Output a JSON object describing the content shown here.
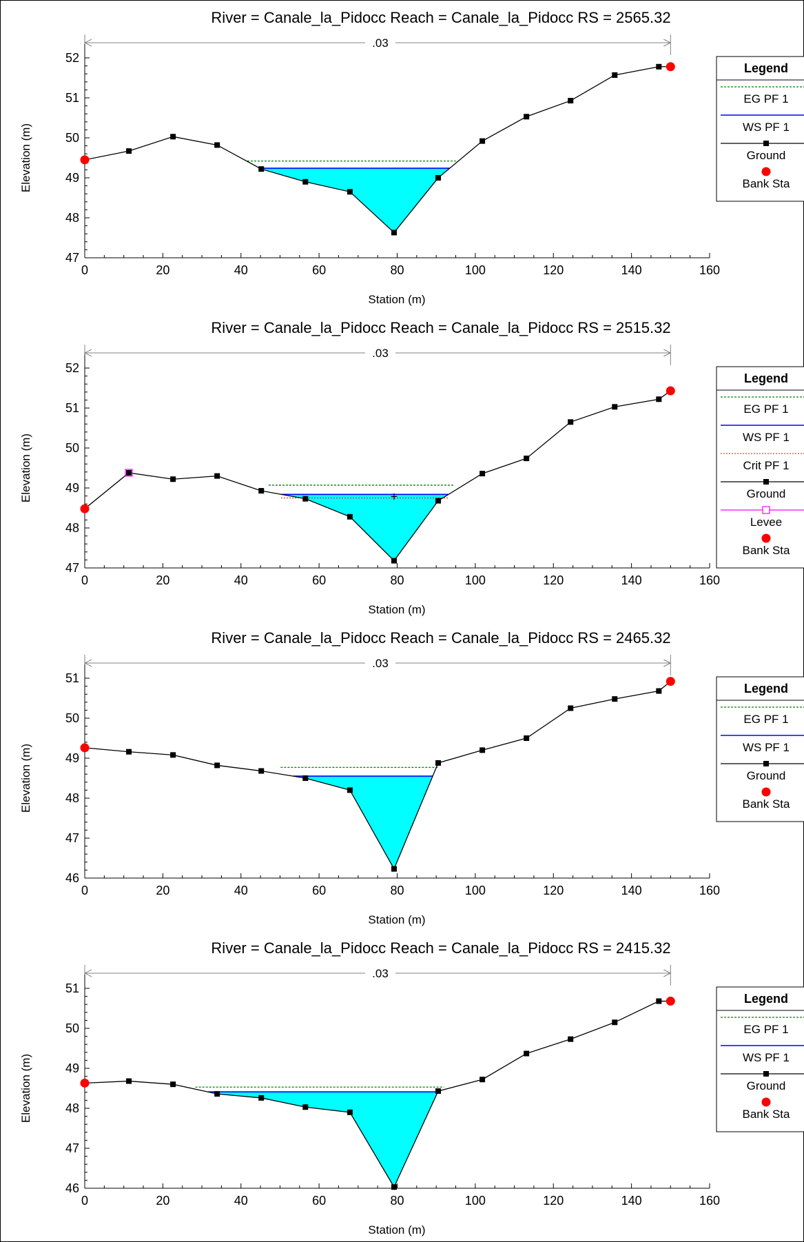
{
  "colors": {
    "water": "#00ffff",
    "ws": "#0000ff",
    "eg": "#008000",
    "crit": "#ff0000",
    "levee": "#ff00ff",
    "bank": "#ff0000",
    "ground": "#000000",
    "nbar": "#808080"
  },
  "chart_data": [
    {
      "type": "line",
      "title": "River = Canale_la_Pidocc   Reach = Canale_la_Pidocc      RS = 2565.32",
      "xlabel": "Station (m)",
      "ylabel": "Elevation (m)",
      "xlim": [
        0,
        160
      ],
      "ylim": [
        47,
        52
      ],
      "xticks": [
        0,
        20,
        40,
        60,
        80,
        100,
        120,
        140,
        160
      ],
      "yticks": [
        47,
        48,
        49,
        50,
        51,
        52
      ],
      "manning_n": ".03",
      "ground": {
        "x": [
          0,
          11.3,
          22.6,
          33.9,
          45.2,
          56.5,
          67.9,
          79.2,
          90.5,
          101.8,
          113.1,
          124.4,
          135.7,
          147.0,
          150.0
        ],
        "y": [
          49.45,
          49.67,
          50.03,
          49.82,
          49.22,
          48.9,
          48.65,
          47.63,
          49.0,
          49.92,
          50.53,
          50.93,
          51.57,
          51.78,
          51.78
        ]
      },
      "bank_stations": [
        [
          0,
          49.45
        ],
        [
          150,
          51.78
        ]
      ],
      "levees": [],
      "ws": 49.24,
      "eg": 49.42,
      "crit": null,
      "legend": [
        "EG PF 1",
        "WS PF 1",
        "Ground",
        "Bank Sta"
      ],
      "legend_title": "Legend"
    },
    {
      "type": "line",
      "title": "River = Canale_la_Pidocc   Reach = Canale_la_Pidocc      RS = 2515.32",
      "xlabel": "Station (m)",
      "ylabel": "Elevation (m)",
      "xlim": [
        0,
        160
      ],
      "ylim": [
        47,
        52
      ],
      "xticks": [
        0,
        20,
        40,
        60,
        80,
        100,
        120,
        140,
        160
      ],
      "yticks": [
        47,
        48,
        49,
        50,
        51,
        52
      ],
      "manning_n": ".03",
      "ground": {
        "x": [
          0,
          11.3,
          22.6,
          33.9,
          45.2,
          56.5,
          67.9,
          79.2,
          90.5,
          101.8,
          113.1,
          124.4,
          135.7,
          147.0,
          150.0
        ],
        "y": [
          48.48,
          49.38,
          49.22,
          49.3,
          48.93,
          48.73,
          48.28,
          47.18,
          48.68,
          49.36,
          49.74,
          50.65,
          51.03,
          51.22,
          51.43
        ]
      },
      "bank_stations": [
        [
          0,
          48.48
        ],
        [
          150,
          51.43
        ]
      ],
      "levees": [
        [
          11.3,
          49.38
        ]
      ],
      "ws": 48.84,
      "eg": 49.07,
      "crit": 48.75,
      "legend": [
        "EG PF 1",
        "WS PF 1",
        "Crit PF 1",
        "Ground",
        "Levee",
        "Bank Sta"
      ],
      "legend_title": "Legend"
    },
    {
      "type": "line",
      "title": "River = Canale_la_Pidocc   Reach = Canale_la_Pidocc      RS = 2465.32",
      "xlabel": "Station (m)",
      "ylabel": "Elevation (m)",
      "xlim": [
        0,
        160
      ],
      "ylim": [
        46,
        51
      ],
      "xticks": [
        0,
        20,
        40,
        60,
        80,
        100,
        120,
        140,
        160
      ],
      "yticks": [
        46,
        47,
        48,
        49,
        50,
        51
      ],
      "manning_n": ".03",
      "ground": {
        "x": [
          0,
          11.3,
          22.6,
          33.9,
          45.2,
          56.5,
          67.9,
          79.2,
          90.5,
          101.8,
          113.1,
          124.4,
          135.7,
          147.0,
          150.0
        ],
        "y": [
          49.26,
          49.16,
          49.08,
          48.82,
          48.68,
          48.5,
          48.2,
          46.23,
          48.88,
          49.2,
          49.5,
          50.25,
          50.48,
          50.68,
          50.92
        ]
      },
      "bank_stations": [
        [
          0,
          49.26
        ],
        [
          150,
          50.92
        ]
      ],
      "levees": [],
      "ws": 48.55,
      "eg": 48.77,
      "crit": null,
      "legend": [
        "EG PF 1",
        "WS PF 1",
        "Ground",
        "Bank Sta"
      ],
      "legend_title": "Legend"
    },
    {
      "type": "line",
      "title": "River = Canale_la_Pidocc   Reach = Canale_la_Pidocc      RS = 2415.32",
      "xlabel": "Station (m)",
      "ylabel": "Elevation (m)",
      "xlim": [
        0,
        160
      ],
      "ylim": [
        46,
        51
      ],
      "xticks": [
        0,
        20,
        40,
        60,
        80,
        100,
        120,
        140,
        160
      ],
      "yticks": [
        46,
        47,
        48,
        49,
        50,
        51
      ],
      "manning_n": ".03",
      "ground": {
        "x": [
          0,
          11.3,
          22.6,
          33.9,
          45.2,
          56.5,
          67.9,
          79.2,
          90.5,
          101.8,
          113.1,
          124.4,
          135.7,
          147.0,
          150.0
        ],
        "y": [
          48.63,
          48.68,
          48.6,
          48.36,
          48.26,
          48.03,
          47.9,
          46.03,
          48.43,
          48.72,
          49.37,
          49.73,
          50.15,
          50.68,
          50.68
        ]
      },
      "bank_stations": [
        [
          0,
          48.63
        ],
        [
          150,
          50.68
        ]
      ],
      "levees": [],
      "ws": 48.41,
      "eg": 48.53,
      "crit": null,
      "legend": [
        "EG PF 1",
        "WS PF 1",
        "Ground",
        "Bank Sta"
      ],
      "legend_title": "Legend"
    }
  ]
}
